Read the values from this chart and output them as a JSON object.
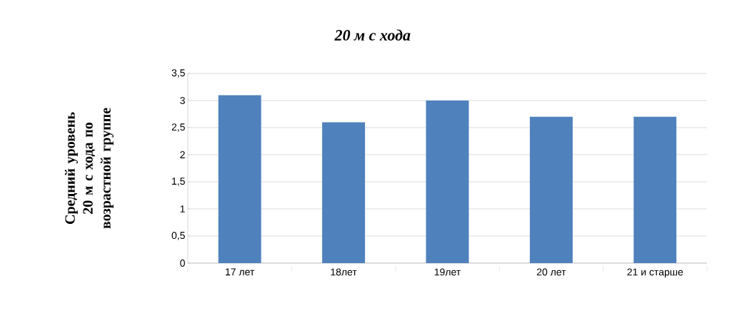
{
  "chart_data": {
    "type": "bar",
    "title": "20 м с хода",
    "ylabel": "Средний уровень 20 м с хода по возрастной группе",
    "categories": [
      "17 лет",
      "18лет",
      "19лет",
      "20 лет",
      "21 и старше"
    ],
    "values": [
      3.1,
      2.6,
      3.0,
      2.7,
      2.7
    ],
    "color": "#4f81bd",
    "ylim": [
      0,
      3.5
    ],
    "yticks": [
      {
        "value": 0,
        "label": "0"
      },
      {
        "value": 0.5,
        "label": "0,5"
      },
      {
        "value": 1,
        "label": "1"
      },
      {
        "value": 1.5,
        "label": "1,5"
      },
      {
        "value": 2,
        "label": "2"
      },
      {
        "value": 2.5,
        "label": "2,5"
      },
      {
        "value": 3,
        "label": "3"
      },
      {
        "value": 3.5,
        "label": "3,5"
      }
    ],
    "grid": "y"
  }
}
